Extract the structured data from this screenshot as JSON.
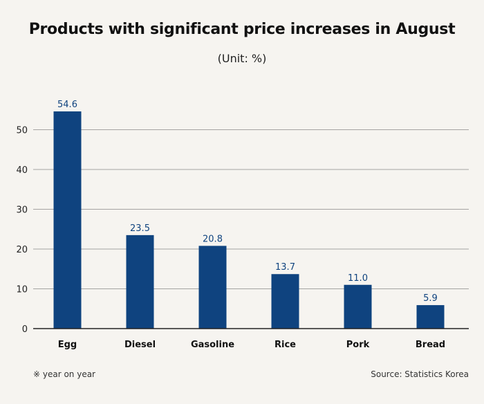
{
  "chart_data": {
    "type": "bar",
    "title": "Products with significant price increases in August",
    "subtitle": "(Unit: %)",
    "categories": [
      "Egg",
      "Diesel",
      "Gasoline",
      "Rice",
      "Pork",
      "Bread"
    ],
    "values": [
      54.6,
      23.5,
      20.8,
      13.7,
      11.0,
      5.9
    ],
    "value_labels": [
      "54.6",
      "23.5",
      "20.8",
      "13.7",
      "11.0",
      "5.9"
    ],
    "ylim": [
      0,
      55
    ],
    "yticks": [
      0,
      10,
      20,
      30,
      40,
      50
    ],
    "xlabel": "",
    "ylabel": "",
    "grid": true,
    "bar_color": "#0f437f",
    "label_color": "#0f437f",
    "grid_color": "#888888",
    "axis_color": "#222222"
  },
  "footnote": "※ year on year",
  "source": "Source: Statistics Korea"
}
